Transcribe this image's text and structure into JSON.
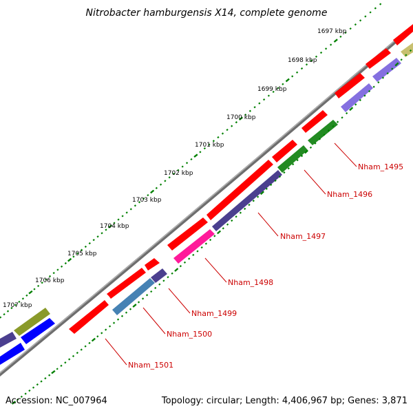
{
  "title": "Nitrobacter hamburgensis X14, complete genome",
  "footer": {
    "accession": "Accession: NC_007964",
    "summary": "Topology: circular; Length: 4,406,967 bp; Genes: 3,871"
  },
  "ticks": [
    "1697 kbp",
    "1698 kbp",
    "1699 kbp",
    "1700 kbp",
    "1701 kbp",
    "1702 kbp",
    "1703 kbp",
    "1704 kbp",
    "1705 kbp",
    "1706 kbp",
    "1707 kbp"
  ],
  "gene_labels": [
    "Nham_1495",
    "Nham_1496",
    "Nham_1497",
    "Nham_1498",
    "Nham_1499",
    "Nham_1500",
    "Nham_1501"
  ],
  "colors": {
    "backbone": "#808080",
    "tick_outer": "#008000",
    "tick_inner": "#008000",
    "gene_label": "#cc0000",
    "red": "#ff0000",
    "dark_purple": "#4b3f8f",
    "pink": "#ff1a9a",
    "steel_blue": "#4682b4",
    "green": "#228b22",
    "lavender": "#8470e0",
    "olive": "#8a9a2a",
    "khaki": "#c8c070",
    "blue": "#0000ff"
  }
}
